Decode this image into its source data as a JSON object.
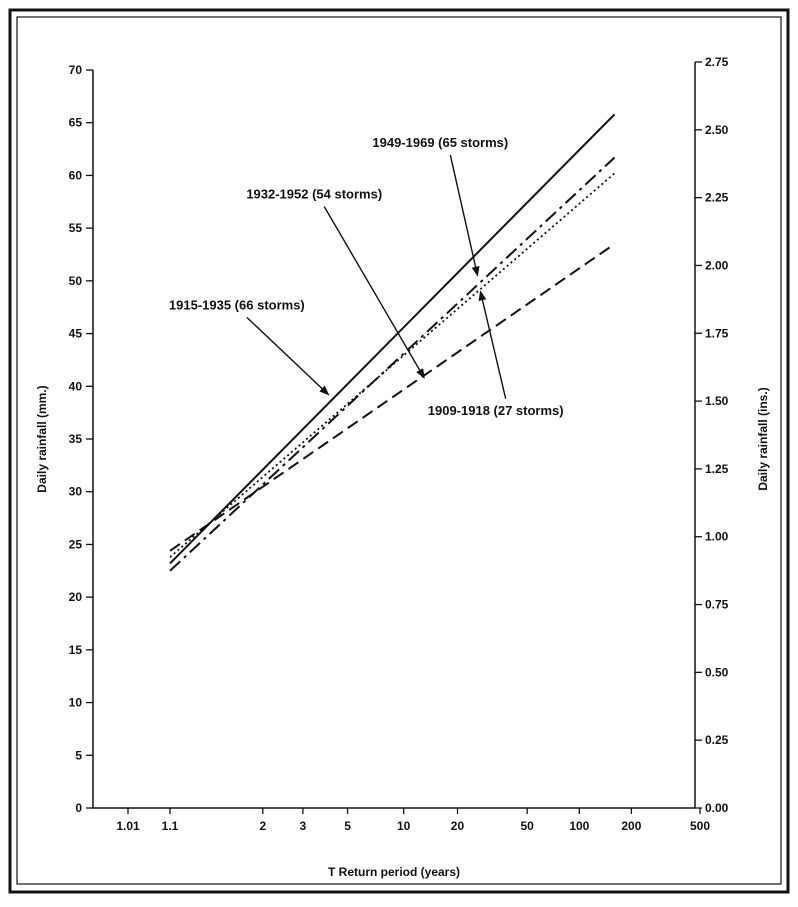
{
  "chart_data": {
    "type": "line",
    "title": "",
    "xlabel": "T Return period (years)",
    "ylabel": "Daily rainfall (mm.)",
    "ylabel_right": "Daily rainfall (ins.)",
    "x_scale": "gumbel-probability",
    "xlim": [
      1.0,
      500
    ],
    "ylim": [
      0,
      70
    ],
    "ylim_right": [
      0,
      2.75
    ],
    "x_ticks": [
      1.01,
      1.1,
      2,
      3,
      5,
      10,
      20,
      50,
      100,
      200,
      500
    ],
    "x_tick_labels": [
      "1.01",
      "1.1",
      "2",
      "3",
      "5",
      "10",
      "20",
      "50",
      "100",
      "200",
      "500"
    ],
    "y_ticks": [
      0,
      5,
      10,
      15,
      20,
      25,
      30,
      35,
      40,
      45,
      50,
      55,
      60,
      65,
      70
    ],
    "y_tick_labels": [
      "0",
      "5",
      "10",
      "15",
      "20",
      "25",
      "30",
      "35",
      "40",
      "45",
      "50",
      "55",
      "60",
      "65",
      "70"
    ],
    "y_right_ticks": [
      0,
      0.25,
      0.5,
      0.75,
      1.0,
      1.25,
      1.5,
      1.75,
      2.0,
      2.25,
      2.5,
      2.75
    ],
    "y_right_tick_labels": [
      "0.00",
      "0.25",
      "0.50",
      "0.75",
      "1.00",
      "1.25",
      "1.50",
      "1.75",
      "2.00",
      "2.25",
      "2.50",
      "2.75"
    ],
    "grid": false,
    "series": [
      {
        "name": "1915-1935 (66 storms)",
        "style": "solid",
        "x": [
          1.1,
          160
        ],
        "y": [
          23.2,
          65.8
        ]
      },
      {
        "name": "1932-1952 (54 storms)",
        "style": "dashed",
        "x": [
          1.1,
          160
        ],
        "y": [
          24.4,
          53.5
        ]
      },
      {
        "name": "1949-1969 (65 storms)",
        "style": "dashdot",
        "x": [
          1.1,
          160
        ],
        "y": [
          22.5,
          61.7
        ]
      },
      {
        "name": "1909-1918 (27 storms)",
        "style": "dotted",
        "x": [
          1.1,
          160
        ],
        "y": [
          23.8,
          60.2
        ]
      }
    ],
    "annotations": [
      {
        "text": "1949-1969 (65 storms)",
        "series": "1949-1969 (65 storms)",
        "text_at": [
          16,
          62.7
        ],
        "arrow_to": [
          26,
          50.5
        ]
      },
      {
        "text": "1932-1952  (54 storms)",
        "series": "1932-1952 (54 storms)",
        "text_at": [
          3.4,
          57.8
        ],
        "arrow_to": [
          13,
          40.8
        ]
      },
      {
        "text": "1915-1935 (66 storms)",
        "series": "1915-1935 (66 storms)",
        "text_at": [
          1.6,
          47.3
        ],
        "arrow_to": [
          4,
          39.2
        ]
      },
      {
        "text": "1909-1918 (27 storms)",
        "series": "1909-1918 (27 storms)",
        "text_at": [
          33,
          37.3
        ],
        "arrow_to": [
          27,
          49.0
        ]
      }
    ]
  }
}
